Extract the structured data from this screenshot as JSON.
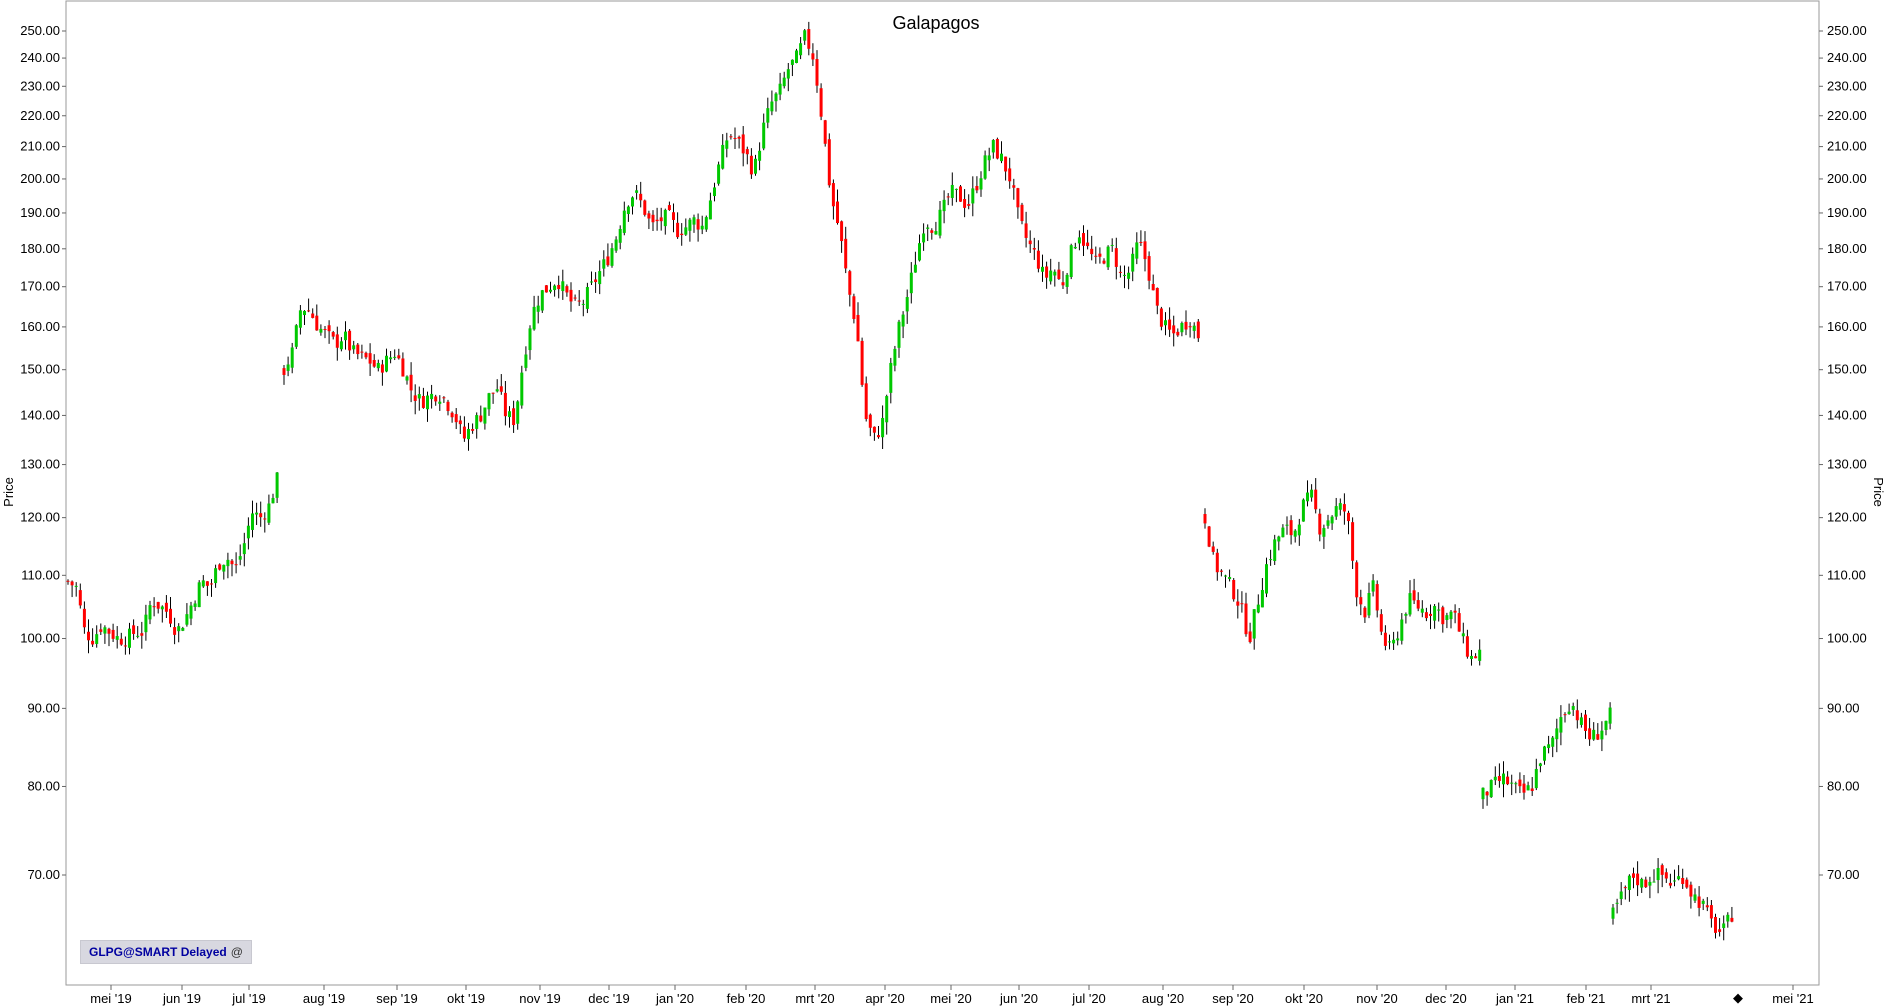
{
  "chart_data": {
    "type": "candlestick",
    "title": "Galapagos",
    "ylabel_left": "Price",
    "ylabel_right": "Price",
    "y_scale": "log",
    "ylim": [
      62,
      255
    ],
    "y_ticks": [
      "70.00",
      "80.00",
      "90.00",
      "100.00",
      "110.00",
      "120.00",
      "130.00",
      "140.00",
      "150.00",
      "160.00",
      "170.00",
      "180.00",
      "190.00",
      "200.00",
      "210.00",
      "220.00",
      "230.00",
      "240.00",
      "250.00"
    ],
    "x_ticks": [
      "mei '19",
      "jun '19",
      "jul '19",
      "aug '19",
      "sep '19",
      "okt '19",
      "nov '19",
      "dec '19",
      "jan '20",
      "feb '20",
      "mrt '20",
      "apr '20",
      "mei '20",
      "jun '20",
      "jul '20",
      "aug '20",
      "sep '20",
      "okt '20",
      "nov '20",
      "dec '20",
      "jan '21",
      "feb '21",
      "mrt '21",
      "mei '21"
    ],
    "up_color": "#00c800",
    "down_color": "#ff0000",
    "wick_color": "#000000",
    "series": [
      {
        "segment": 1,
        "from": "2019-04-23",
        "to": "2019-07-19",
        "closes": [
          [
            0,
            109
          ],
          [
            2,
            108
          ],
          [
            4,
            101
          ],
          [
            6,
            100
          ],
          [
            8,
            102
          ],
          [
            10,
            101
          ],
          [
            12,
            100
          ],
          [
            14,
            100
          ],
          [
            16,
            101
          ],
          [
            18,
            101
          ],
          [
            20,
            106
          ],
          [
            22,
            105
          ],
          [
            24,
            104
          ],
          [
            26,
            101
          ],
          [
            28,
            103
          ],
          [
            30,
            106
          ],
          [
            32,
            109
          ],
          [
            34,
            108
          ],
          [
            36,
            112
          ],
          [
            38,
            113
          ],
          [
            40,
            111
          ],
          [
            42,
            115
          ],
          [
            44,
            121
          ],
          [
            46,
            120
          ],
          [
            48,
            122
          ],
          [
            50,
            127
          ]
        ]
      },
      {
        "segment": 2,
        "from": "2019-07-22",
        "to": "2020-08-14",
        "closes": [
          [
            0,
            150
          ],
          [
            2,
            154
          ],
          [
            4,
            165
          ],
          [
            6,
            164
          ],
          [
            8,
            160
          ],
          [
            10,
            158
          ],
          [
            12,
            156
          ],
          [
            14,
            158
          ],
          [
            16,
            154
          ],
          [
            18,
            153
          ],
          [
            20,
            152
          ],
          [
            22,
            150
          ],
          [
            24,
            152
          ],
          [
            26,
            154
          ],
          [
            28,
            150
          ],
          [
            30,
            145
          ],
          [
            32,
            143
          ],
          [
            34,
            144
          ],
          [
            36,
            145
          ],
          [
            38,
            143
          ],
          [
            40,
            140
          ],
          [
            42,
            135
          ],
          [
            44,
            138
          ],
          [
            46,
            140
          ],
          [
            48,
            144
          ],
          [
            50,
            146
          ],
          [
            52,
            140
          ],
          [
            54,
            139
          ],
          [
            56,
            152
          ],
          [
            58,
            163
          ],
          [
            60,
            168
          ],
          [
            62,
            170
          ],
          [
            64,
            172
          ],
          [
            66,
            168
          ],
          [
            68,
            165
          ],
          [
            70,
            166
          ],
          [
            72,
            170
          ],
          [
            74,
            174
          ],
          [
            76,
            178
          ],
          [
            78,
            184
          ],
          [
            80,
            193
          ],
          [
            82,
            196
          ],
          [
            84,
            192
          ],
          [
            86,
            186
          ],
          [
            88,
            188
          ],
          [
            90,
            189
          ],
          [
            92,
            185
          ],
          [
            94,
            186
          ],
          [
            96,
            188
          ],
          [
            98,
            186
          ],
          [
            100,
            195
          ],
          [
            102,
            205
          ],
          [
            104,
            214
          ],
          [
            106,
            212
          ],
          [
            108,
            208
          ],
          [
            110,
            202
          ],
          [
            112,
            215
          ],
          [
            114,
            224
          ],
          [
            116,
            228
          ],
          [
            118,
            236
          ],
          [
            120,
            240
          ],
          [
            122,
            248
          ],
          [
            124,
            240
          ],
          [
            126,
            218
          ],
          [
            128,
            195
          ],
          [
            130,
            185
          ],
          [
            132,
            170
          ],
          [
            134,
            160
          ],
          [
            136,
            140
          ],
          [
            138,
            135
          ],
          [
            140,
            138
          ],
          [
            142,
            150
          ],
          [
            144,
            160
          ],
          [
            146,
            168
          ],
          [
            148,
            178
          ],
          [
            150,
            188
          ],
          [
            152,
            186
          ],
          [
            154,
            190
          ],
          [
            156,
            196
          ],
          [
            158,
            195
          ],
          [
            160,
            192
          ],
          [
            162,
            198
          ],
          [
            164,
            205
          ],
          [
            166,
            210
          ],
          [
            168,
            206
          ],
          [
            170,
            200
          ],
          [
            172,
            188
          ],
          [
            174,
            182
          ],
          [
            176,
            178
          ],
          [
            178,
            172
          ],
          [
            180,
            175
          ],
          [
            182,
            170
          ],
          [
            184,
            178
          ],
          [
            186,
            185
          ],
          [
            188,
            180
          ],
          [
            190,
            176
          ],
          [
            192,
            178
          ],
          [
            194,
            180
          ],
          [
            196,
            172
          ],
          [
            198,
            174
          ],
          [
            200,
            182
          ],
          [
            202,
            176
          ],
          [
            204,
            165
          ],
          [
            206,
            160
          ],
          [
            208,
            158
          ],
          [
            210,
            160
          ],
          [
            212,
            162
          ],
          [
            214,
            158
          ]
        ]
      },
      {
        "segment": 3,
        "from": "2020-08-24",
        "to": "2020-12-18",
        "closes": [
          [
            0,
            120
          ],
          [
            2,
            112
          ],
          [
            4,
            110
          ],
          [
            6,
            108
          ],
          [
            8,
            105
          ],
          [
            10,
            100
          ],
          [
            12,
            106
          ],
          [
            14,
            112
          ],
          [
            16,
            116
          ],
          [
            18,
            118
          ],
          [
            20,
            117
          ],
          [
            22,
            122
          ],
          [
            24,
            124
          ],
          [
            26,
            118
          ],
          [
            28,
            120
          ],
          [
            30,
            122
          ],
          [
            32,
            121
          ],
          [
            34,
            108
          ],
          [
            36,
            104
          ],
          [
            38,
            108
          ],
          [
            40,
            100
          ],
          [
            42,
            98
          ],
          [
            44,
            102
          ],
          [
            46,
            106
          ],
          [
            48,
            105
          ],
          [
            50,
            104
          ],
          [
            52,
            105
          ],
          [
            54,
            103
          ],
          [
            56,
            104
          ],
          [
            58,
            100
          ],
          [
            60,
            97
          ],
          [
            62,
            98
          ]
        ]
      },
      {
        "segment": 4,
        "from": "2021-01-04",
        "to": "2021-02-05",
        "closes": [
          [
            0,
            79
          ],
          [
            2,
            80
          ],
          [
            4,
            81
          ],
          [
            6,
            80
          ],
          [
            8,
            79
          ],
          [
            10,
            80
          ],
          [
            12,
            84
          ],
          [
            14,
            85
          ],
          [
            16,
            89
          ],
          [
            18,
            91
          ],
          [
            20,
            88
          ],
          [
            22,
            86
          ],
          [
            24,
            87
          ],
          [
            26,
            89
          ]
        ]
      },
      {
        "segment": 5,
        "from": "2021-02-08",
        "to": "2021-04-01",
        "closes": [
          [
            0,
            66
          ],
          [
            2,
            68
          ],
          [
            4,
            70
          ],
          [
            6,
            69
          ],
          [
            8,
            70
          ],
          [
            10,
            70
          ],
          [
            12,
            69
          ],
          [
            14,
            70
          ],
          [
            16,
            68
          ],
          [
            18,
            67
          ],
          [
            20,
            65
          ],
          [
            22,
            64
          ],
          [
            24,
            66
          ]
        ]
      }
    ]
  },
  "badge": {
    "text": "GLPG@SMART Delayed",
    "icon": "at-icon",
    "icon_glyph": "@"
  }
}
